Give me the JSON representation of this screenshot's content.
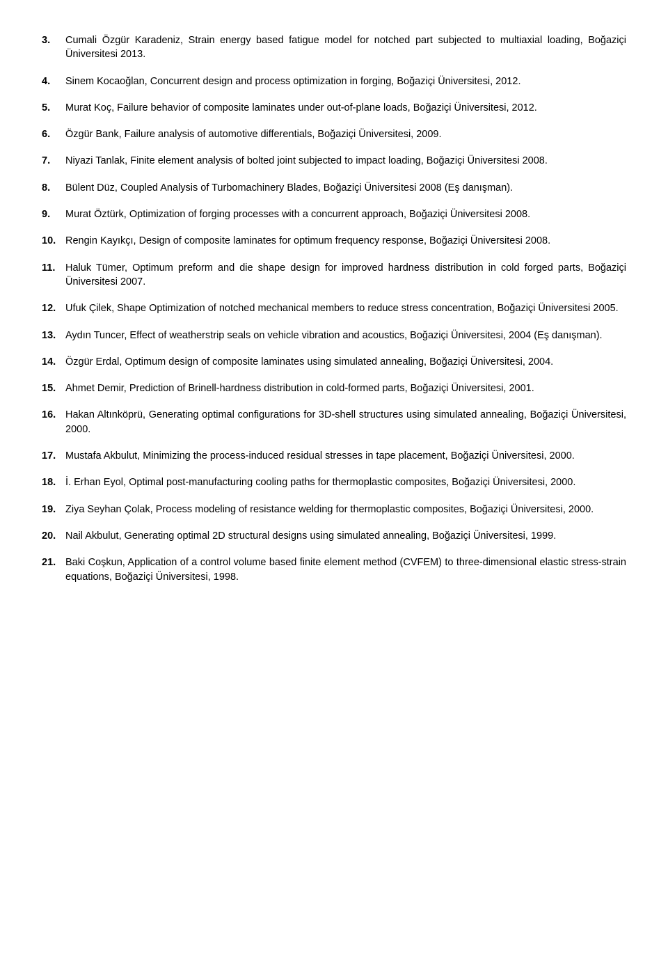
{
  "items": [
    {
      "text": "Cumali Özgür Karadeniz, Strain energy based fatigue model for notched part subjected to multiaxial loading, Boğaziçi Üniversitesi 2013."
    },
    {
      "text": "Sinem Kocaoğlan, Concurrent design and process optimization in forging, Boğaziçi Üniversitesi, 2012."
    },
    {
      "text": "Murat Koç, Failure behavior of composite laminates under out-of-plane loads, Boğaziçi Üniversitesi, 2012."
    },
    {
      "text": "Özgür Bank, Failure analysis of automotive differentials, Boğaziçi Üniversitesi, 2009."
    },
    {
      "text": "Niyazi Tanlak, Finite element analysis of bolted joint subjected to impact loading, Boğaziçi Üniversitesi 2008."
    },
    {
      "text": "Bülent Düz, Coupled Analysis of Turbomachinery Blades, Boğaziçi Üniversitesi 2008 (Eş danışman)."
    },
    {
      "text": "Murat Öztürk, Optimization of forging processes with a concurrent approach, Boğaziçi Üniversitesi 2008."
    },
    {
      "text": "Rengin Kayıkçı, Design of composite laminates for optimum frequency response, Boğaziçi Üniversitesi 2008."
    },
    {
      "text": "Haluk Tümer, Optimum preform and die shape design for improved hardness distribution in cold forged parts, Boğaziçi Üniversitesi 2007."
    },
    {
      "text": "Ufuk Çilek, Shape Optimization of notched mechanical members to reduce stress concentration, Boğaziçi Üniversitesi 2005."
    },
    {
      "text": "Aydın Tuncer, Effect of weatherstrip seals on vehicle vibration and acoustics, Boğaziçi Üniversitesi, 2004 (Eş danışman)."
    },
    {
      "text": "Özgür Erdal, Optimum design of composite laminates using simulated annealing, Boğaziçi Üniversitesi, 2004."
    },
    {
      "text": "Ahmet Demir, Prediction of Brinell-hardness distribution in cold-formed parts, Boğaziçi Üniversitesi, 2001."
    },
    {
      "text": "Hakan Altınköprü, Generating optimal configurations for 3D-shell structures using simulated annealing, Boğaziçi Üniversitesi, 2000."
    },
    {
      "text": "Mustafa Akbulut, Minimizing the process-induced residual stresses in tape placement, Boğaziçi Üniversitesi, 2000."
    },
    {
      "text": "İ. Erhan Eyol, Optimal post-manufacturing cooling paths for thermoplastic composites, Boğaziçi Üniversitesi, 2000."
    },
    {
      "text": "Ziya Seyhan Çolak, Process modeling of resistance welding for thermoplastic composites, Boğaziçi Üniversitesi, 2000."
    },
    {
      "text": "Nail Akbulut, Generating optimal 2D structural designs using simulated annealing, Boğaziçi Üniversitesi, 1999."
    },
    {
      "text": "Baki Coşkun, Application of a control volume based finite element method (CVFEM) to three-dimensional elastic stress-strain equations, Boğaziçi Üniversitesi, 1998."
    }
  ]
}
